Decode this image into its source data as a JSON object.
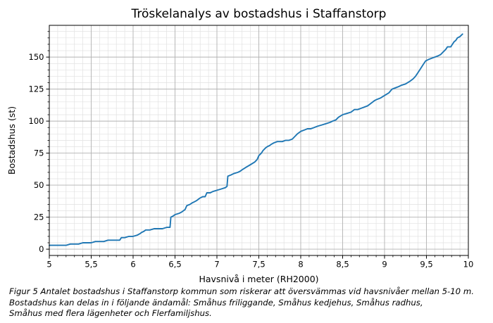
{
  "figure": {
    "caption_lines": [
      "Figur 5 Antalet bostadshus i Staffanstorp kommun som riskerar att översvämmas vid havsnivåer mellan 5-10 m.",
      "Bostadshus kan delas in i följande ändamål: Småhus friliggande, Småhus kedjehus, Småhus radhus,",
      "Småhus med flera lägenheter och Flerfamiljshus."
    ]
  },
  "chart_data": {
    "type": "line",
    "title": "Tröskelanalys av bostadshus i Staffanstorp",
    "xlabel": "Havsnivå i meter (RH2000)",
    "ylabel": "Bostadshus (st)",
    "xlim": [
      5,
      10
    ],
    "ylim": [
      -4.9,
      174.8
    ],
    "x_ticks": [
      5,
      5.5,
      6,
      6.5,
      7,
      7.5,
      8,
      8.5,
      9,
      9.5,
      10
    ],
    "x_tick_labels": [
      "5",
      "5,5",
      "6",
      "6,5",
      "7",
      "7,5",
      "8",
      "8,5",
      "9",
      "9,5",
      "10"
    ],
    "y_ticks": [
      0,
      25,
      50,
      75,
      100,
      125,
      150
    ],
    "y_tick_labels": [
      "0",
      "25",
      "50",
      "75",
      "100",
      "125",
      "150"
    ],
    "minor_x_step": 0.1,
    "minor_y_step": 5,
    "grid": true,
    "legend_position": "none",
    "line_color": "#1f77b4",
    "major_grid_color": "#b2b2b2",
    "minor_grid_color": "#e1e1e1",
    "spine_color": "#000000",
    "series": [
      {
        "name": "Bostadshus",
        "points": [
          [
            5.0,
            3
          ],
          [
            5.05,
            3
          ],
          [
            5.1,
            3
          ],
          [
            5.15,
            3
          ],
          [
            5.2,
            3
          ],
          [
            5.25,
            4
          ],
          [
            5.3,
            4
          ],
          [
            5.35,
            4
          ],
          [
            5.4,
            5
          ],
          [
            5.5,
            5
          ],
          [
            5.55,
            6
          ],
          [
            5.6,
            6
          ],
          [
            5.65,
            6
          ],
          [
            5.7,
            7
          ],
          [
            5.75,
            7
          ],
          [
            5.8,
            7
          ],
          [
            5.84,
            7
          ],
          [
            5.86,
            9
          ],
          [
            5.9,
            9
          ],
          [
            5.95,
            10
          ],
          [
            6.0,
            10
          ],
          [
            6.05,
            11
          ],
          [
            6.08,
            12
          ],
          [
            6.1,
            13
          ],
          [
            6.13,
            14
          ],
          [
            6.15,
            15
          ],
          [
            6.2,
            15
          ],
          [
            6.25,
            16
          ],
          [
            6.3,
            16
          ],
          [
            6.35,
            16
          ],
          [
            6.4,
            17
          ],
          [
            6.44,
            17
          ],
          [
            6.45,
            25
          ],
          [
            6.48,
            26
          ],
          [
            6.5,
            27
          ],
          [
            6.55,
            28
          ],
          [
            6.58,
            29
          ],
          [
            6.6,
            30
          ],
          [
            6.62,
            31
          ],
          [
            6.64,
            34
          ],
          [
            6.68,
            35
          ],
          [
            6.7,
            36
          ],
          [
            6.73,
            37
          ],
          [
            6.76,
            38
          ],
          [
            6.8,
            40
          ],
          [
            6.83,
            41
          ],
          [
            6.86,
            41
          ],
          [
            6.88,
            44
          ],
          [
            6.92,
            44
          ],
          [
            6.95,
            45
          ],
          [
            7.0,
            46
          ],
          [
            7.05,
            47
          ],
          [
            7.1,
            48
          ],
          [
            7.12,
            49
          ],
          [
            7.13,
            57
          ],
          [
            7.17,
            58
          ],
          [
            7.2,
            59
          ],
          [
            7.25,
            60
          ],
          [
            7.28,
            61
          ],
          [
            7.3,
            62
          ],
          [
            7.35,
            64
          ],
          [
            7.4,
            66
          ],
          [
            7.45,
            68
          ],
          [
            7.48,
            70
          ],
          [
            7.5,
            73
          ],
          [
            7.53,
            75
          ],
          [
            7.55,
            77
          ],
          [
            7.58,
            79
          ],
          [
            7.6,
            80
          ],
          [
            7.63,
            81
          ],
          [
            7.65,
            82
          ],
          [
            7.68,
            83
          ],
          [
            7.72,
            84
          ],
          [
            7.78,
            84
          ],
          [
            7.82,
            85
          ],
          [
            7.86,
            85
          ],
          [
            7.9,
            86
          ],
          [
            7.93,
            88
          ],
          [
            7.96,
            90
          ],
          [
            8.0,
            92
          ],
          [
            8.04,
            93
          ],
          [
            8.08,
            94
          ],
          [
            8.12,
            94
          ],
          [
            8.16,
            95
          ],
          [
            8.2,
            96
          ],
          [
            8.25,
            97
          ],
          [
            8.3,
            98
          ],
          [
            8.35,
            99
          ],
          [
            8.38,
            100
          ],
          [
            8.42,
            101
          ],
          [
            8.45,
            103
          ],
          [
            8.5,
            105
          ],
          [
            8.55,
            106
          ],
          [
            8.6,
            107
          ],
          [
            8.64,
            109
          ],
          [
            8.68,
            109
          ],
          [
            8.72,
            110
          ],
          [
            8.76,
            111
          ],
          [
            8.8,
            112
          ],
          [
            8.84,
            114
          ],
          [
            8.88,
            116
          ],
          [
            8.91,
            117
          ],
          [
            8.95,
            118
          ],
          [
            9.0,
            120
          ],
          [
            9.05,
            122
          ],
          [
            9.09,
            125
          ],
          [
            9.13,
            126
          ],
          [
            9.17,
            127
          ],
          [
            9.2,
            128
          ],
          [
            9.25,
            129
          ],
          [
            9.3,
            131
          ],
          [
            9.34,
            133
          ],
          [
            9.37,
            135
          ],
          [
            9.4,
            138
          ],
          [
            9.43,
            141
          ],
          [
            9.46,
            144
          ],
          [
            9.49,
            147
          ],
          [
            9.52,
            148
          ],
          [
            9.56,
            149
          ],
          [
            9.6,
            150
          ],
          [
            9.64,
            151
          ],
          [
            9.67,
            152
          ],
          [
            9.7,
            154
          ],
          [
            9.73,
            156
          ],
          [
            9.75,
            158
          ],
          [
            9.79,
            158
          ],
          [
            9.81,
            160
          ],
          [
            9.83,
            162
          ],
          [
            9.85,
            163
          ],
          [
            9.87,
            165
          ],
          [
            9.9,
            166
          ],
          [
            9.93,
            168
          ]
        ]
      }
    ]
  }
}
